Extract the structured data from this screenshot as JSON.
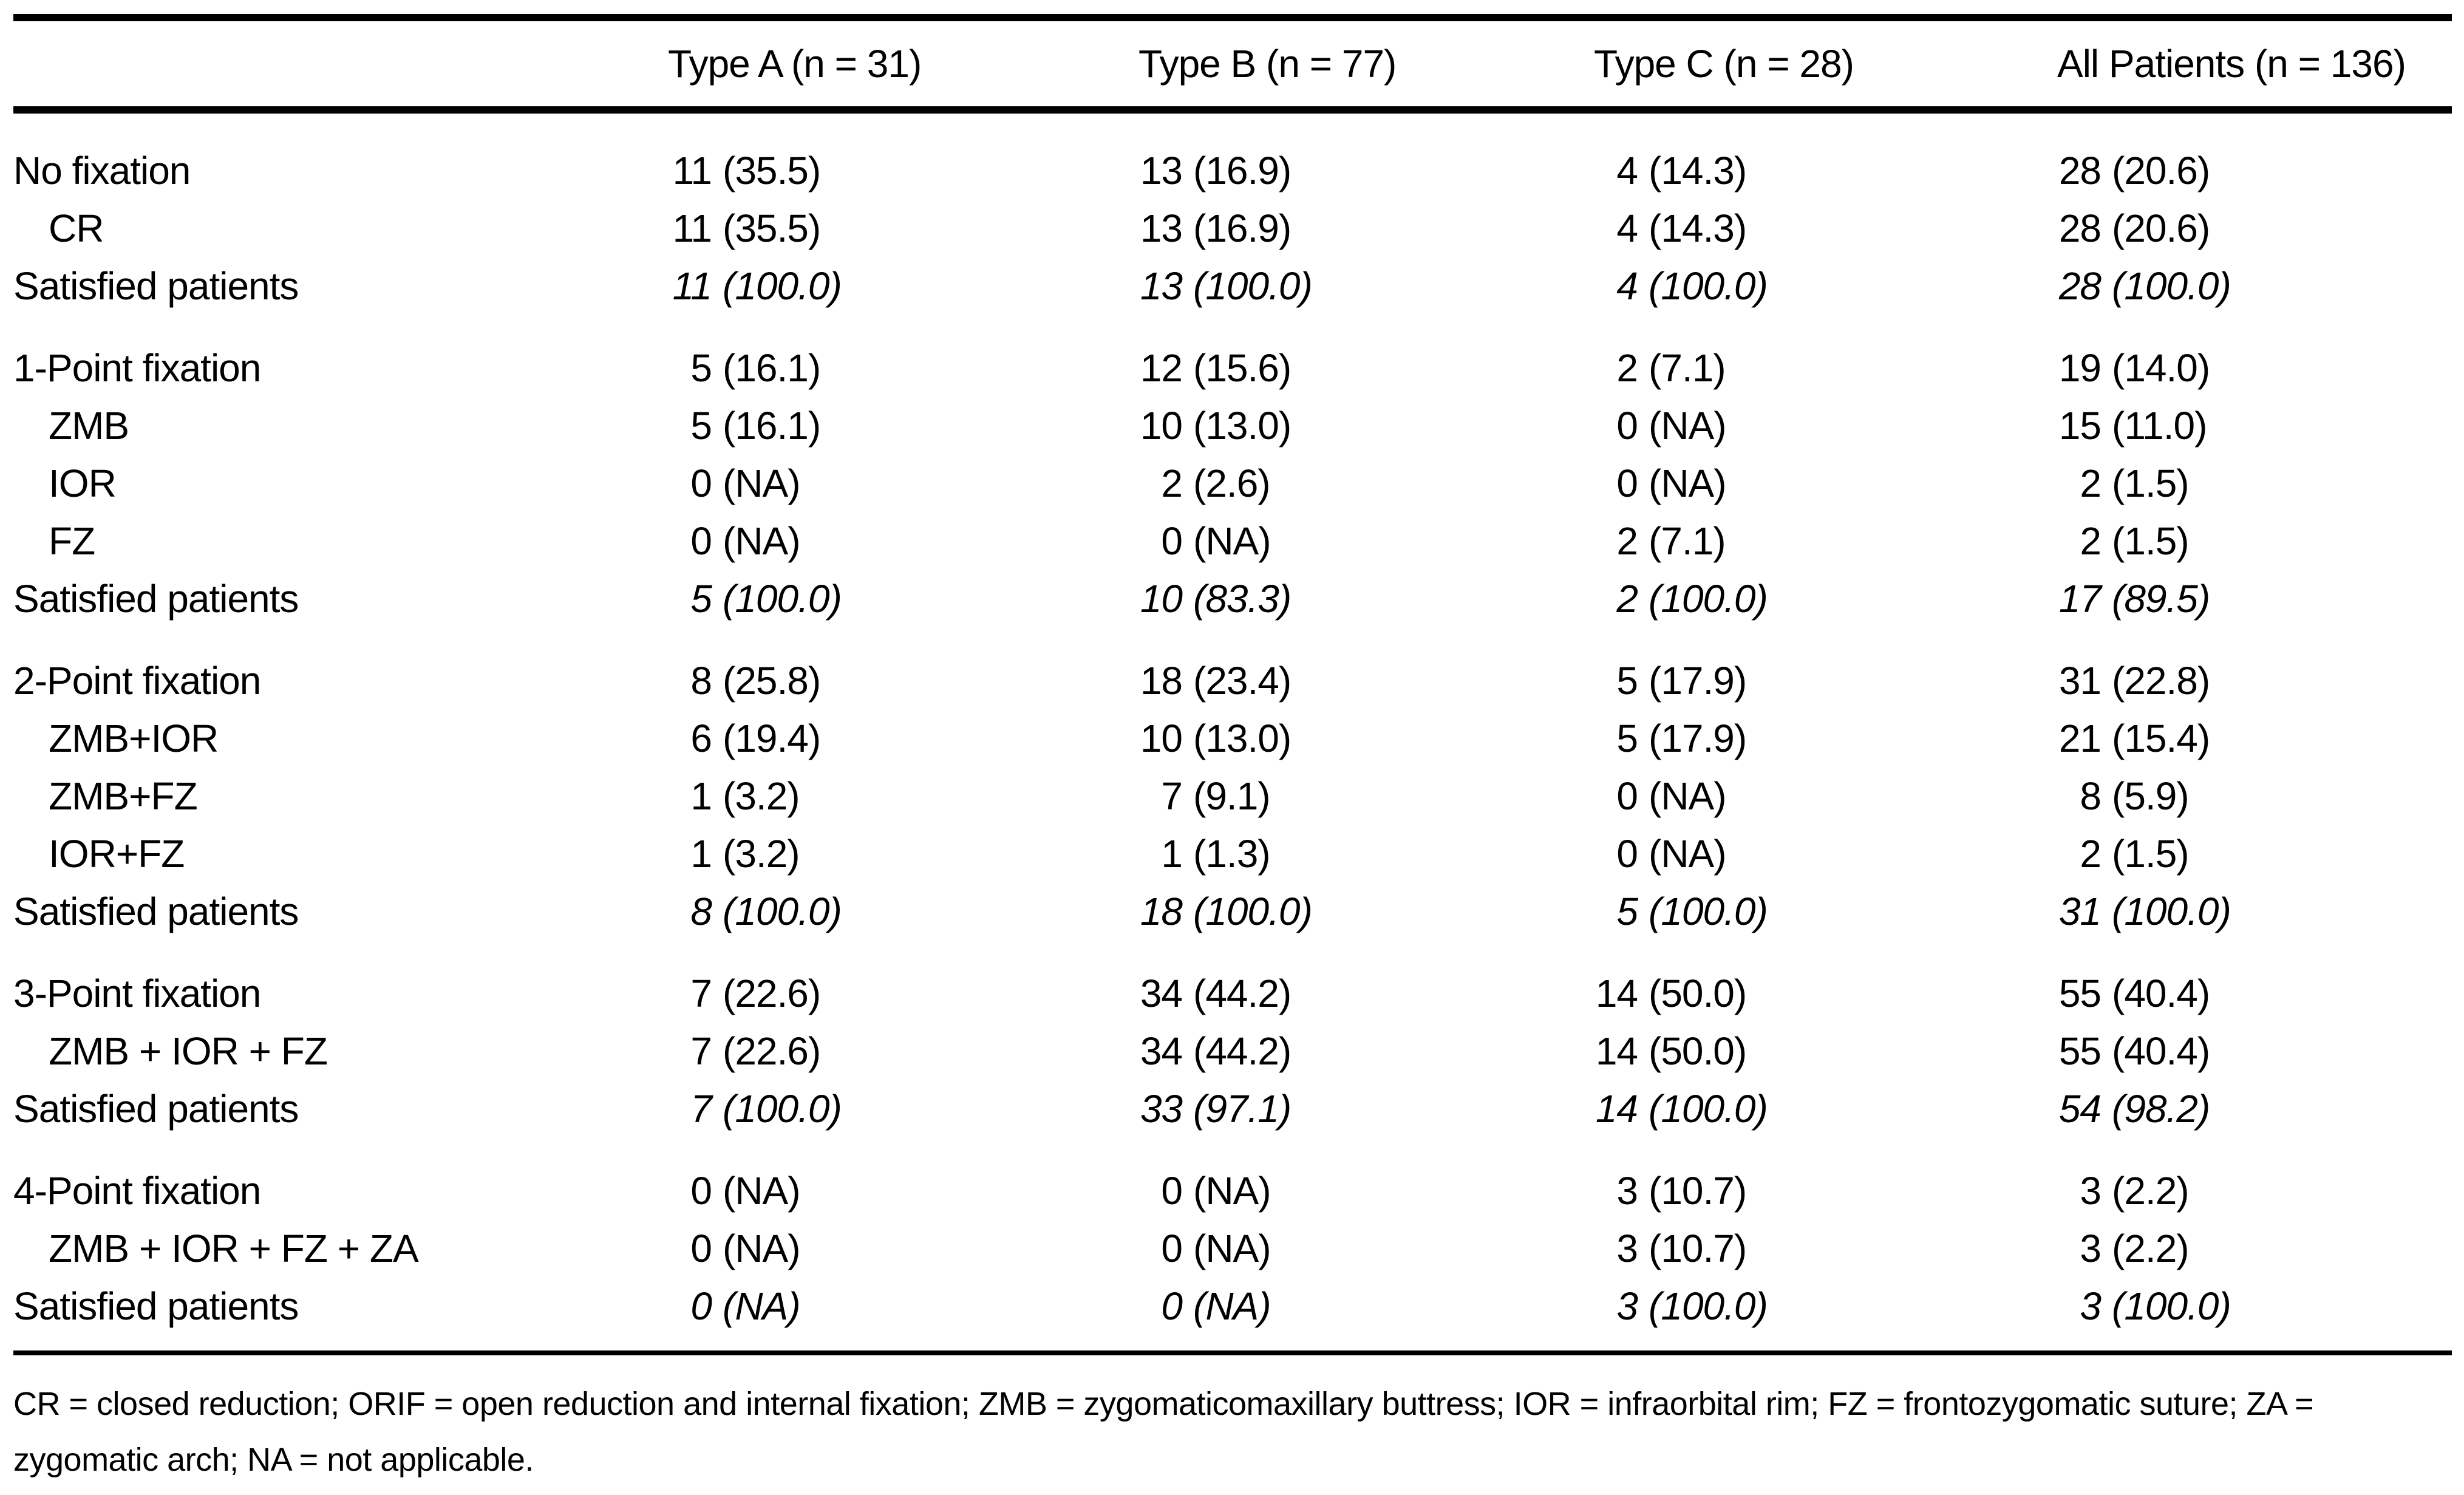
{
  "table": {
    "header": {
      "col_a": "Type A (n = 31)",
      "col_b": "Type B (n = 77)",
      "col_c": "Type C (n = 28)",
      "col_all": "All Patients (n = 136)"
    },
    "sections": [
      {
        "rows": [
          {
            "label": "No fixation",
            "cells": [
              {
                "n": "11",
                "p": "(35.5)"
              },
              {
                "n": "13",
                "p": "(16.9)"
              },
              {
                "n": "4",
                "p": "(14.3)"
              },
              {
                "n": "28",
                "p": "(20.6)"
              }
            ]
          },
          {
            "label": "CR",
            "cells": [
              {
                "n": "11",
                "p": "(35.5)"
              },
              {
                "n": "13",
                "p": "(16.9)"
              },
              {
                "n": "4",
                "p": "(14.3)"
              },
              {
                "n": "28",
                "p": "(20.6)"
              }
            ]
          },
          {
            "label": "Satisfied patients",
            "cells": [
              {
                "n": "11",
                "p": "(100.0)"
              },
              {
                "n": "13",
                "p": "(100.0)"
              },
              {
                "n": "4",
                "p": "(100.0)"
              },
              {
                "n": "28",
                "p": "(100.0)"
              }
            ]
          }
        ]
      },
      {
        "rows": [
          {
            "label": "1-Point fixation",
            "cells": [
              {
                "n": "5",
                "p": "(16.1)"
              },
              {
                "n": "12",
                "p": "(15.6)"
              },
              {
                "n": "2",
                "p": "(7.1)"
              },
              {
                "n": "19",
                "p": "(14.0)"
              }
            ]
          },
          {
            "label": "ZMB",
            "cells": [
              {
                "n": "5",
                "p": "(16.1)"
              },
              {
                "n": "10",
                "p": "(13.0)"
              },
              {
                "n": "0",
                "p": "(NA)"
              },
              {
                "n": "15",
                "p": "(11.0)"
              }
            ]
          },
          {
            "label": "IOR",
            "cells": [
              {
                "n": "0",
                "p": "(NA)"
              },
              {
                "n": "2",
                "p": "(2.6)"
              },
              {
                "n": "0",
                "p": "(NA)"
              },
              {
                "n": "2",
                "p": "(1.5)"
              }
            ]
          },
          {
            "label": "FZ",
            "cells": [
              {
                "n": "0",
                "p": "(NA)"
              },
              {
                "n": "0",
                "p": "(NA)"
              },
              {
                "n": "2",
                "p": "(7.1)"
              },
              {
                "n": "2",
                "p": "(1.5)"
              }
            ]
          },
          {
            "label": "Satisfied patients",
            "cells": [
              {
                "n": "5",
                "p": "(100.0)"
              },
              {
                "n": "10",
                "p": "(83.3)"
              },
              {
                "n": "2",
                "p": "(100.0)"
              },
              {
                "n": "17",
                "p": "(89.5)"
              }
            ]
          }
        ]
      },
      {
        "rows": [
          {
            "label": "2-Point fixation",
            "cells": [
              {
                "n": "8",
                "p": "(25.8)"
              },
              {
                "n": "18",
                "p": "(23.4)"
              },
              {
                "n": "5",
                "p": "(17.9)"
              },
              {
                "n": "31",
                "p": "(22.8)"
              }
            ]
          },
          {
            "label": "ZMB+IOR",
            "cells": [
              {
                "n": "6",
                "p": "(19.4)"
              },
              {
                "n": "10",
                "p": "(13.0)"
              },
              {
                "n": "5",
                "p": "(17.9)"
              },
              {
                "n": "21",
                "p": "(15.4)"
              }
            ]
          },
          {
            "label": "ZMB+FZ",
            "cells": [
              {
                "n": "1",
                "p": "(3.2)"
              },
              {
                "n": "7",
                "p": "(9.1)"
              },
              {
                "n": "0",
                "p": "(NA)"
              },
              {
                "n": "8",
                "p": "(5.9)"
              }
            ]
          },
          {
            "label": "IOR+FZ",
            "cells": [
              {
                "n": "1",
                "p": "(3.2)"
              },
              {
                "n": "1",
                "p": "(1.3)"
              },
              {
                "n": "0",
                "p": "(NA)"
              },
              {
                "n": "2",
                "p": "(1.5)"
              }
            ]
          },
          {
            "label": "Satisfied patients",
            "cells": [
              {
                "n": "8",
                "p": "(100.0)"
              },
              {
                "n": "18",
                "p": "(100.0)"
              },
              {
                "n": "5",
                "p": "(100.0)"
              },
              {
                "n": "31",
                "p": "(100.0)"
              }
            ]
          }
        ]
      },
      {
        "rows": [
          {
            "label": "3-Point fixation",
            "cells": [
              {
                "n": "7",
                "p": "(22.6)"
              },
              {
                "n": "34",
                "p": "(44.2)"
              },
              {
                "n": "14",
                "p": "(50.0)"
              },
              {
                "n": "55",
                "p": "(40.4)"
              }
            ]
          },
          {
            "label": "ZMB + IOR + FZ",
            "cells": [
              {
                "n": "7",
                "p": "(22.6)"
              },
              {
                "n": "34",
                "p": "(44.2)"
              },
              {
                "n": "14",
                "p": "(50.0)"
              },
              {
                "n": "55",
                "p": "(40.4)"
              }
            ]
          },
          {
            "label": "Satisfied patients",
            "cells": [
              {
                "n": "7",
                "p": "(100.0)"
              },
              {
                "n": "33",
                "p": "(97.1)"
              },
              {
                "n": "14",
                "p": "(100.0)"
              },
              {
                "n": "54",
                "p": "(98.2)"
              }
            ]
          }
        ]
      },
      {
        "rows": [
          {
            "label": "4-Point fixation",
            "cells": [
              {
                "n": "0",
                "p": "(NA)"
              },
              {
                "n": "0",
                "p": "(NA)"
              },
              {
                "n": "3",
                "p": "(10.7)"
              },
              {
                "n": "3",
                "p": "(2.2)"
              }
            ]
          },
          {
            "label": "ZMB + IOR + FZ + ZA",
            "cells": [
              {
                "n": "0",
                "p": "(NA)"
              },
              {
                "n": "0",
                "p": "(NA)"
              },
              {
                "n": "3",
                "p": "(10.7)"
              },
              {
                "n": "3",
                "p": "(2.2)"
              }
            ]
          },
          {
            "label": "Satisfied patients",
            "cells": [
              {
                "n": "0",
                "p": "(NA)"
              },
              {
                "n": "0",
                "p": "(NA)"
              },
              {
                "n": "3",
                "p": "(100.0)"
              },
              {
                "n": "3",
                "p": "(100.0)"
              }
            ]
          }
        ]
      }
    ]
  },
  "footnote": "CR = closed reduction; ORIF = open reduction and internal fixation; ZMB = zygomaticomaxillary buttress; IOR = infraorbital rim; FZ = frontozygomatic suture; ZA = zygomatic arch; NA = not applicable."
}
